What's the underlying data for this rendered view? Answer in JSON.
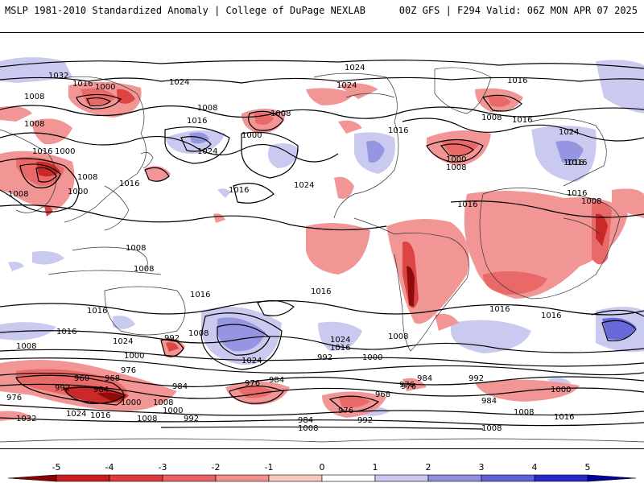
{
  "header": {
    "left_title": "MSLP 1981-2010 Standardized Anomaly | College of DuPage NEXLAB",
    "right_title": "00Z GFS | F294 Valid: 06Z MON APR 07 2025"
  },
  "colorbar": {
    "ticks": [
      "-5",
      "-4",
      "-3",
      "-2",
      "-1",
      "0",
      "1",
      "2",
      "3",
      "4",
      "5"
    ],
    "colors": [
      "#8b0000",
      "#c81e1e",
      "#dc3c3c",
      "#e86060",
      "#f29090",
      "#f8c8c0",
      "#ffffff",
      "#c8c8f0",
      "#9090e0",
      "#6060d8",
      "#2828c8",
      "#0000a0"
    ]
  },
  "isobar_labels": [
    "1032",
    "1016",
    "1008",
    "1000",
    "1024",
    "1024",
    "1024",
    "1016",
    "1008",
    "1016",
    "1008",
    "1000",
    "1016",
    "1008",
    "1008",
    "1000",
    "1024",
    "1016",
    "1000",
    "1016",
    "1024",
    "1008",
    "1016",
    "1008",
    "1016",
    "1016",
    "1016",
    "1000",
    "1008",
    "1016",
    "1024",
    "1016",
    "1008",
    "1008",
    "1008",
    "1016",
    "1016",
    "1016",
    "1016",
    "1024",
    "992",
    "1008",
    "1000",
    "1024",
    "1024",
    "1016",
    "1016",
    "1008",
    "1000",
    "992",
    "1016",
    "1008",
    "984",
    "960",
    "968",
    "976",
    "984",
    "1000",
    "1008",
    "976",
    "984",
    "976",
    "968",
    "976",
    "992",
    "1000",
    "984",
    "1008",
    "976",
    "992",
    "984",
    "976",
    "992",
    "984",
    "1000",
    "1008",
    "1016",
    "1032",
    "1024",
    "1016",
    "1008",
    "992",
    "1008"
  ]
}
